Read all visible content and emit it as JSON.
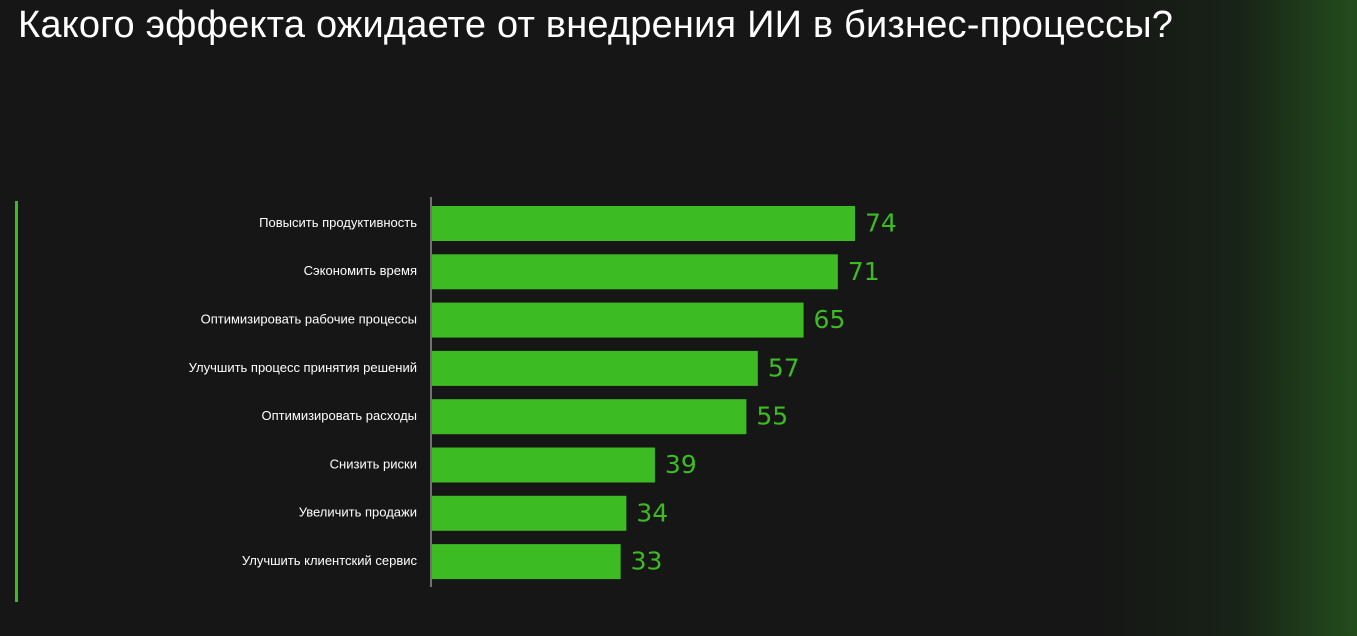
{
  "title": "Какого эффекта ожидаете от внедрения ИИ в бизнес-процессы?",
  "colors": {
    "background": "#161616",
    "bar": "#3dbb22",
    "value_label": "#3dbb22",
    "text": "#ffffff",
    "axis": "#cccccc"
  },
  "chart_data": {
    "type": "bar",
    "orientation": "horizontal",
    "title": "Какого эффекта ожидаете от внедрения ИИ в бизнес-процессы?",
    "categories": [
      "Повысить продуктивность",
      "Сэкономить время",
      "Оптимизировать рабочие процессы",
      "Улучшить процесс принятия решений",
      "Оптимизировать расходы",
      "Снизить риски",
      "Увеличить продажи",
      "Улучшить клиентский сервис"
    ],
    "values": [
      74,
      71,
      65,
      57,
      55,
      39,
      34,
      33
    ],
    "xlim": [
      0,
      74
    ],
    "grid": false,
    "legend": "none",
    "data_labels": true
  }
}
